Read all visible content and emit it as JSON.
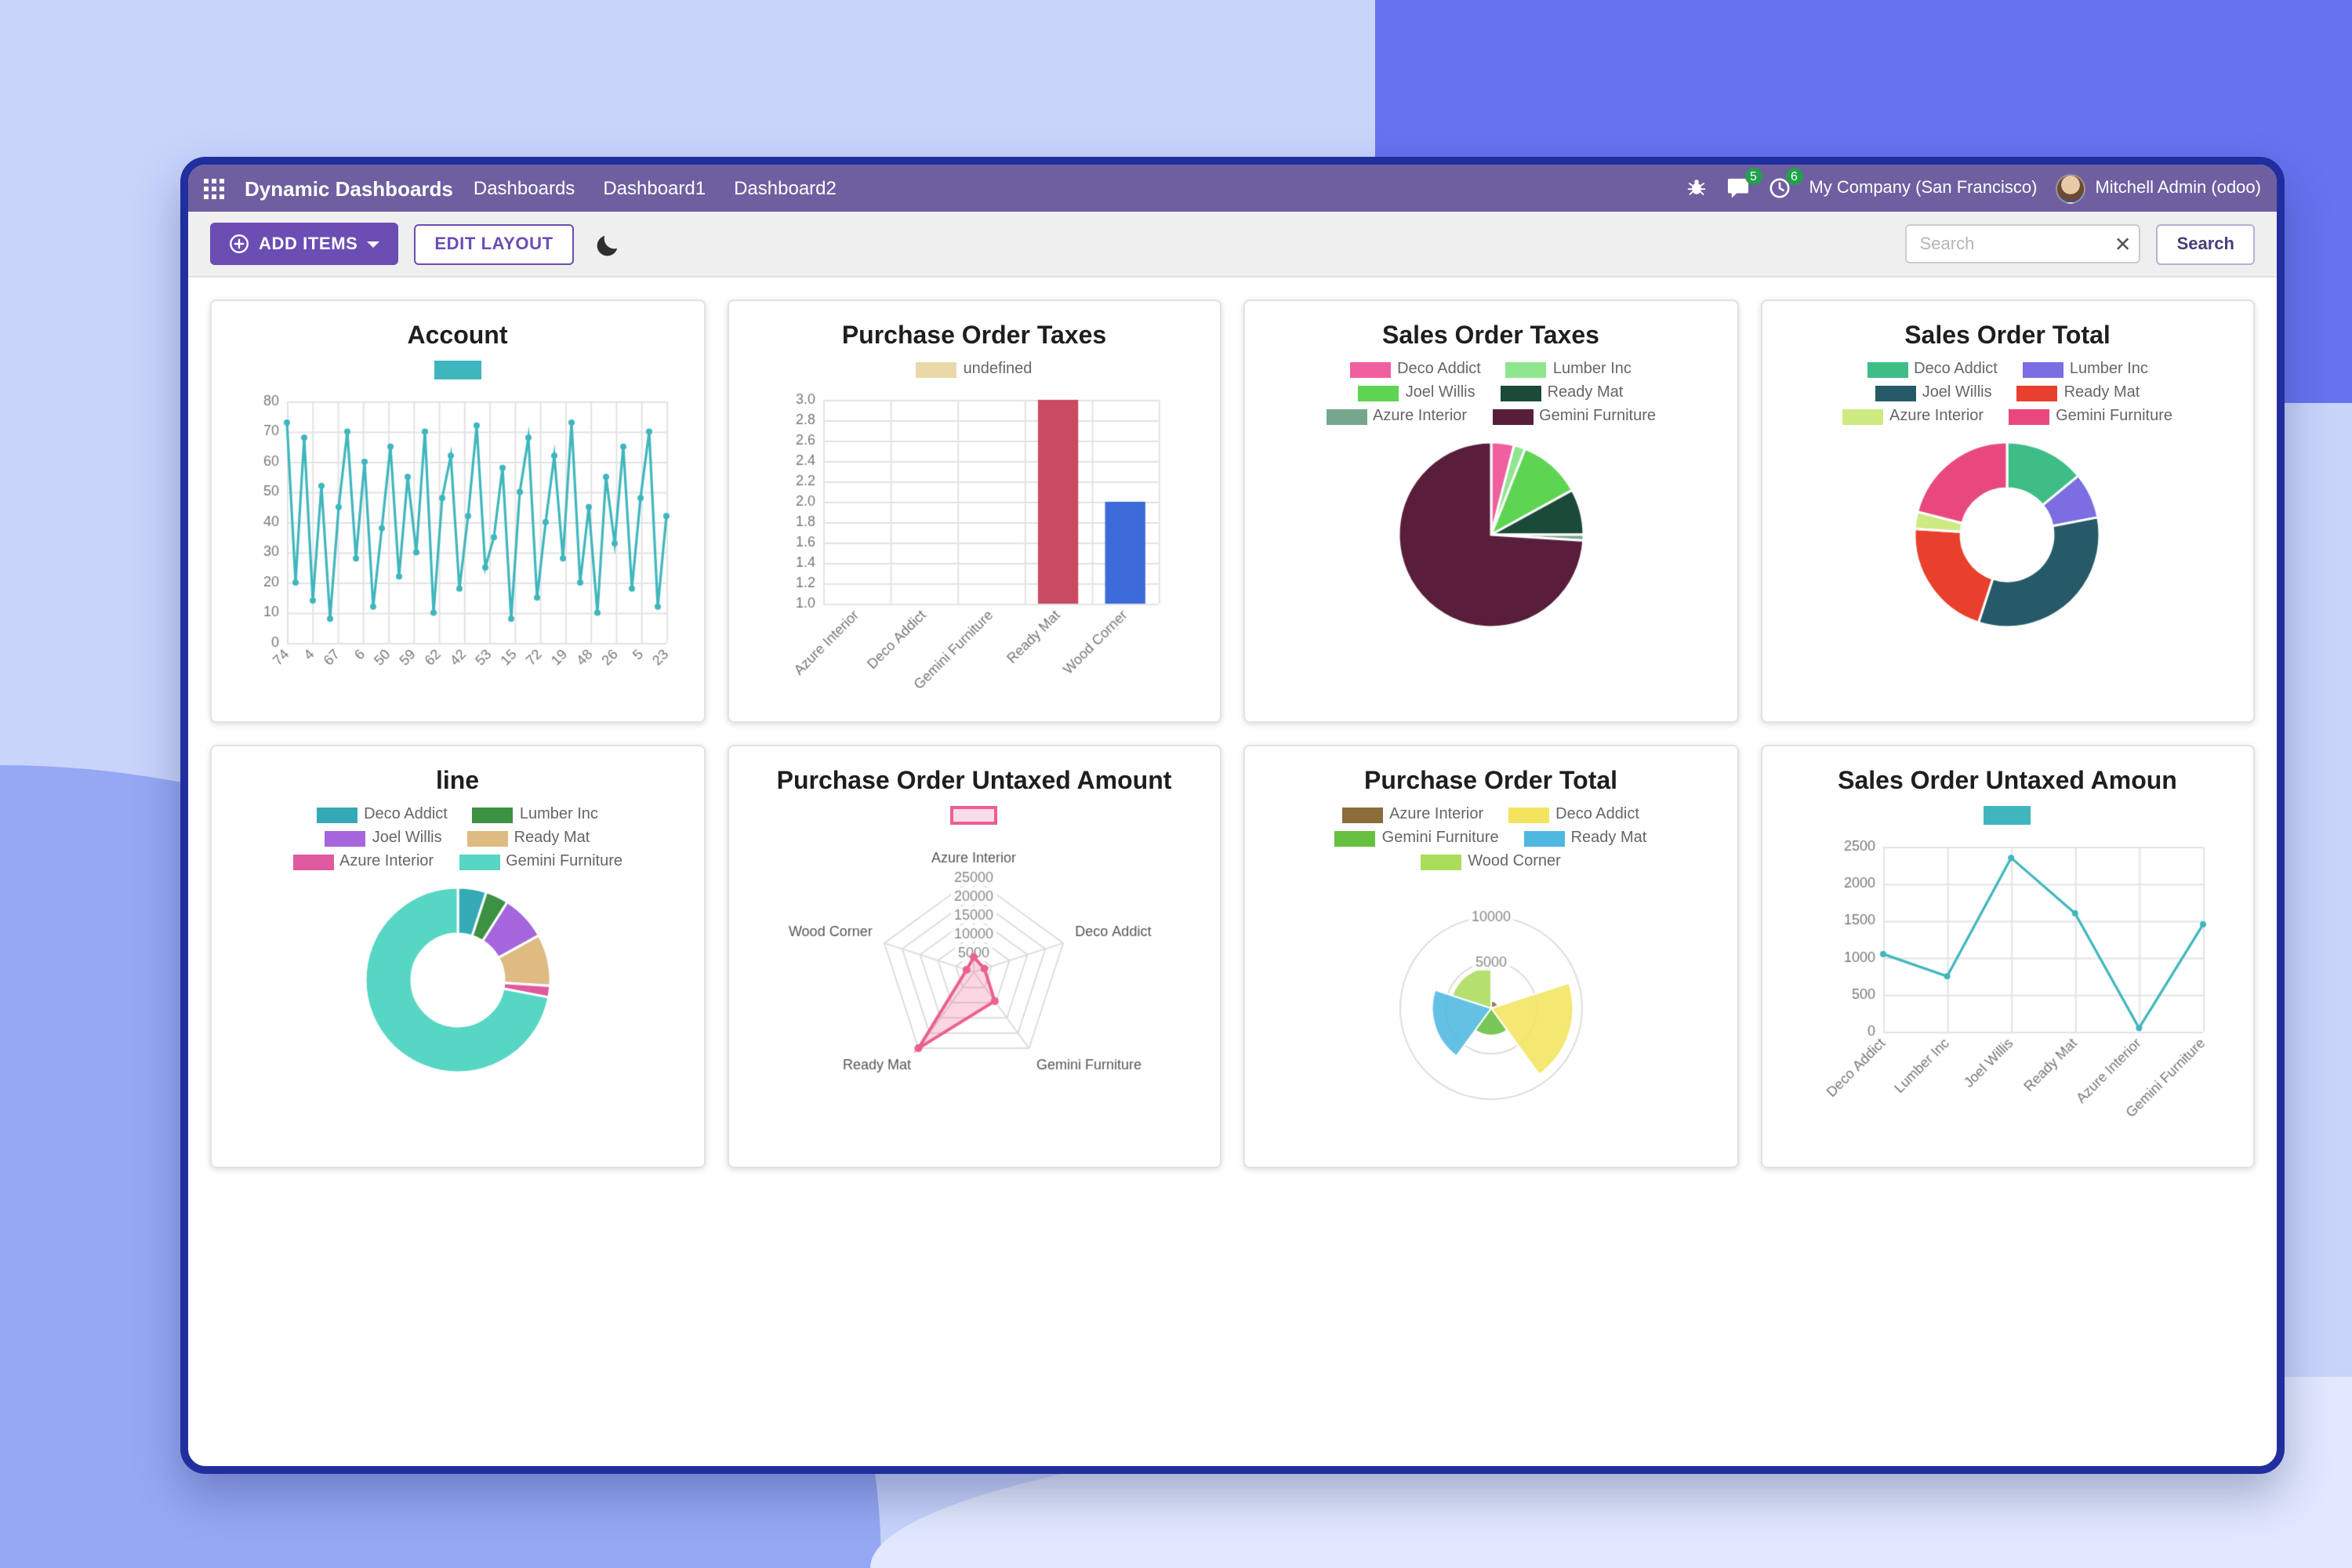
{
  "navbar": {
    "app_title": "Dynamic Dashboards",
    "menu": [
      "Dashboards",
      "Dashboard1",
      "Dashboard2"
    ],
    "messages_badge": "5",
    "activities_badge": "6",
    "company": "My Company (San Francisco)",
    "user": "Mitchell Admin (odoo)"
  },
  "toolbar": {
    "add_items": "ADD ITEMS",
    "edit_layout": "EDIT LAYOUT",
    "search_placeholder": "Search",
    "search_button": "Search"
  },
  "theme": {
    "accent_purple": "#6b4db4",
    "navbar_purple": "#6f5fa0",
    "badge_green": "#23a04c",
    "window_border_blue": "#212f9e",
    "chart_teal": "#3fb6bd"
  },
  "charts": [
    {
      "id": "account",
      "type": "line",
      "title": "Account",
      "color": "#3fb6bd",
      "legend": [
        {
          "label": "",
          "color": "#3fb6bd"
        }
      ],
      "ylim": [
        0,
        80
      ],
      "y_ticks": [
        0,
        10,
        20,
        30,
        40,
        50,
        60,
        70,
        80
      ],
      "x_tick_labels": [
        "74",
        "4",
        "67",
        "6",
        "50",
        "59",
        "62",
        "42",
        "53",
        "15",
        "72",
        "19",
        "48",
        "26",
        "5",
        "23"
      ],
      "values": [
        73,
        20,
        68,
        14,
        52,
        8,
        45,
        70,
        28,
        60,
        12,
        38,
        65,
        22,
        55,
        30,
        70,
        10,
        48,
        62,
        18,
        42,
        72,
        25,
        35,
        58,
        8,
        50,
        68,
        15,
        40,
        62,
        28,
        73,
        20,
        45,
        10,
        55,
        33,
        65,
        18,
        48,
        70,
        12,
        42
      ]
    },
    {
      "id": "purchase-order-taxes",
      "type": "bar",
      "title": "Purchase Order Taxes",
      "legend": [
        {
          "label": "undefined",
          "color": "#ead9a8"
        }
      ],
      "categories": [
        "Azure Interior",
        "Deco Addict",
        "Gemini Furniture",
        "Ready Mat",
        "Wood Corner"
      ],
      "values": [
        null,
        null,
        null,
        3,
        2
      ],
      "bar_colors": [
        "#ead9a8",
        "#ead9a8",
        "#ead9a8",
        "#c94a63",
        "#3a6bd8"
      ],
      "ylim": [
        1.0,
        3.0
      ],
      "y_ticks": [
        "1.0",
        "1.2",
        "1.4",
        "1.6",
        "1.8",
        "2.0",
        "2.2",
        "2.4",
        "2.6",
        "2.8",
        "3.0"
      ]
    },
    {
      "id": "sales-order-taxes",
      "type": "pie",
      "title": "Sales Order Taxes",
      "legend": [
        {
          "label": "Deco Addict",
          "color": "#f0609e"
        },
        {
          "label": "Lumber Inc",
          "color": "#8fe68f"
        },
        {
          "label": "Joel Willis",
          "color": "#5ed552"
        },
        {
          "label": "Ready Mat",
          "color": "#1c4a38"
        },
        {
          "label": "Azure Interior",
          "color": "#76a78e"
        },
        {
          "label": "Gemini Furniture",
          "color": "#591e3c"
        }
      ],
      "values": [
        4,
        2,
        11,
        8,
        1,
        74
      ]
    },
    {
      "id": "sales-order-total",
      "type": "doughnut",
      "title": "Sales Order Total",
      "legend": [
        {
          "label": "Deco Addict",
          "color": "#3ebd87"
        },
        {
          "label": "Lumber Inc",
          "color": "#7a6ee2"
        },
        {
          "label": "Joel Willis",
          "color": "#275a68"
        },
        {
          "label": "Ready Mat",
          "color": "#e8402c"
        },
        {
          "label": "Azure Interior",
          "color": "#cdea83"
        },
        {
          "label": "Gemini Furniture",
          "color": "#e9487f"
        }
      ],
      "values": [
        14,
        8,
        33,
        21,
        3,
        21
      ]
    },
    {
      "id": "line",
      "type": "doughnut",
      "title": "line",
      "legend": [
        {
          "label": "Deco Addict",
          "color": "#35aab6"
        },
        {
          "label": "Lumber Inc",
          "color": "#3d9142"
        },
        {
          "label": "Joel Willis",
          "color": "#a566dd"
        },
        {
          "label": "Ready Mat",
          "color": "#debb80"
        },
        {
          "label": "Azure Interior",
          "color": "#df5a9f"
        },
        {
          "label": "Gemini Furniture",
          "color": "#57d6c4"
        }
      ],
      "values": [
        5,
        4,
        8,
        9,
        2,
        72
      ]
    },
    {
      "id": "purchase-order-untaxed-amount",
      "type": "radar",
      "title": "Purchase Order Untaxed Amount",
      "color": "#ec5f90",
      "fill": "rgba(236,95,144,0.25)",
      "legend": [
        {
          "label": "",
          "color": "#fbdce8",
          "outline": "#ec5f90"
        }
      ],
      "axes": [
        "Azure Interior",
        "Deco Addict",
        "Gemini Furniture",
        "Ready Mat",
        "Wood Corner"
      ],
      "values": [
        4000,
        3000,
        9500,
        25000,
        2000
      ],
      "max": 25000,
      "ring_ticks": [
        5000,
        10000,
        15000,
        20000,
        25000
      ]
    },
    {
      "id": "purchase-order-total",
      "type": "polar",
      "title": "Purchase Order Total",
      "legend": [
        {
          "label": "Azure Interior",
          "color": "#8a6d3b"
        },
        {
          "label": "Deco Addict",
          "color": "#f2e45f"
        },
        {
          "label": "Gemini Furniture",
          "color": "#67bf3f"
        },
        {
          "label": "Ready Mat",
          "color": "#4fb8e0"
        },
        {
          "label": "Wood Corner",
          "color": "#abdc5a"
        }
      ],
      "values": [
        800,
        9000,
        3000,
        6500,
        4500
      ],
      "max": 10000,
      "ring_ticks": [
        5000,
        10000
      ]
    },
    {
      "id": "sales-order-untaxed-amount",
      "type": "line",
      "title": "Sales Order Untaxed Amoun",
      "color": "#3fb6bd",
      "legend": [
        {
          "label": "",
          "color": "#3fb6bd"
        }
      ],
      "ylim": [
        0,
        2500
      ],
      "y_ticks": [
        0,
        500,
        1000,
        1500,
        2000,
        2500
      ],
      "categories": [
        "Deco Addict",
        "Lumber Inc",
        "Joel Willis",
        "Ready Mat",
        "Azure Interior",
        "Gemini Furniture"
      ],
      "values": [
        1050,
        750,
        2350,
        1600,
        50,
        1450
      ]
    }
  ]
}
